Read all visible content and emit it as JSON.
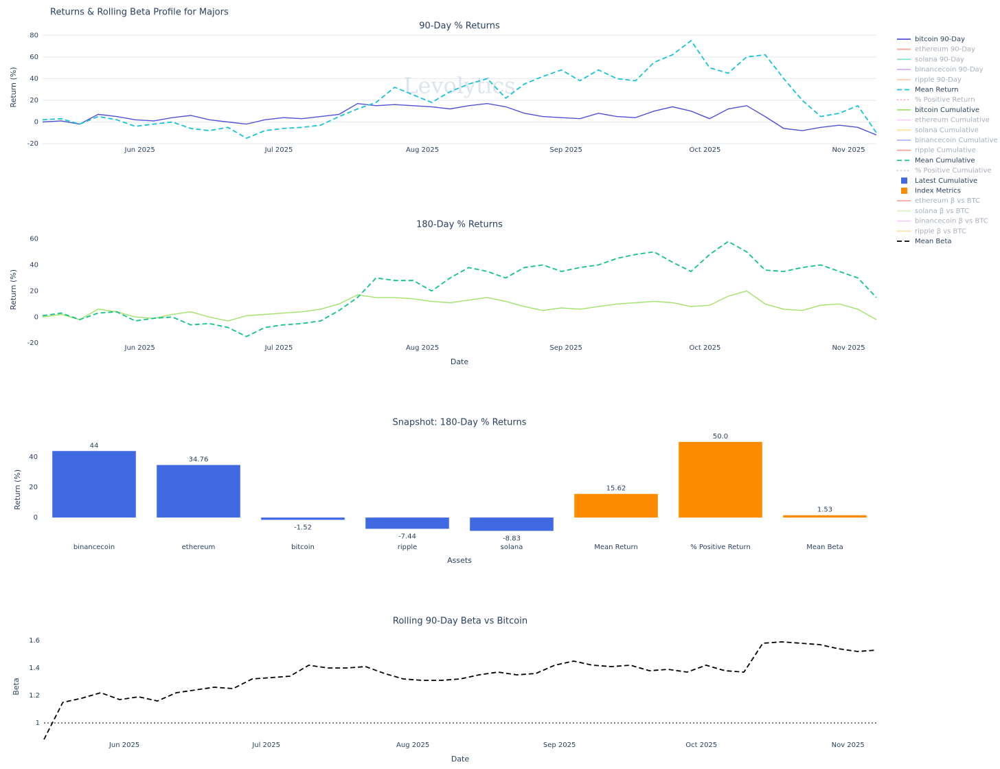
{
  "title": "Returns & Rolling Beta Profile for Majors",
  "legend": [
    {
      "name": "bitcoin 90-Day",
      "color": "#5050d9",
      "style": "solid",
      "visible": true
    },
    {
      "name": "ethereum 90-Day",
      "color": "#ef553b",
      "style": "solid",
      "visible": false
    },
    {
      "name": "solana 90-Day",
      "color": "#00cc96",
      "style": "solid",
      "visible": false
    },
    {
      "name": "binancecoin 90-Day",
      "color": "#ab63fa",
      "style": "solid",
      "visible": false
    },
    {
      "name": "ripple 90-Day",
      "color": "#ffa15a",
      "style": "solid",
      "visible": false
    },
    {
      "name": "Mean Return",
      "color": "#17c3d6",
      "style": "dash",
      "visible": true
    },
    {
      "name": "% Positive Return",
      "color": "#ff6692",
      "style": "dot",
      "visible": false
    },
    {
      "name": "bitcoin Cumulative",
      "color": "#a0e36a",
      "style": "solid",
      "visible": true
    },
    {
      "name": "ethereum Cumulative",
      "color": "#ff97ff",
      "style": "solid",
      "visible": false
    },
    {
      "name": "solana Cumulative",
      "color": "#fecb52",
      "style": "solid",
      "visible": false
    },
    {
      "name": "binancecoin Cumulative",
      "color": "#636efa",
      "style": "solid",
      "visible": false
    },
    {
      "name": "ripple Cumulative",
      "color": "#ef553b",
      "style": "solid",
      "visible": false
    },
    {
      "name": "Mean Cumulative",
      "color": "#10c38a",
      "style": "dash",
      "visible": true
    },
    {
      "name": "% Positive Cumulative",
      "color": "#8c8cd8",
      "style": "dot",
      "visible": false
    },
    {
      "name": "Latest Cumulative",
      "color": "#4169e1",
      "style": "square",
      "visible": true
    },
    {
      "name": "Index Metrics",
      "color": "#ff8c00",
      "style": "square",
      "visible": true
    },
    {
      "name": "ethereum β vs BTC",
      "color": "#ef553b",
      "style": "solid",
      "visible": false
    },
    {
      "name": "solana β vs BTC",
      "color": "#b6e880",
      "style": "solid",
      "visible": false
    },
    {
      "name": "binancecoin β vs BTC",
      "color": "#ff97ff",
      "style": "solid",
      "visible": false
    },
    {
      "name": "ripple β vs BTC",
      "color": "#fecb52",
      "style": "solid",
      "visible": false
    },
    {
      "name": "Mean Beta",
      "color": "#000000",
      "style": "dash",
      "visible": true
    }
  ],
  "chart_data": [
    {
      "type": "line",
      "title": "90-Day % Returns",
      "y_label": "Return (%)",
      "watermark": "Levolytics",
      "x": [
        131,
        135,
        139,
        143,
        147,
        151,
        155,
        159,
        163,
        167,
        171,
        175,
        179,
        183,
        187,
        191,
        195,
        199,
        203,
        207,
        211,
        215,
        219,
        223,
        227,
        231,
        235,
        239,
        243,
        247,
        251,
        255,
        259,
        263,
        267,
        271,
        275,
        279,
        283,
        287,
        291,
        295,
        299,
        303,
        307,
        311
      ],
      "xlim": [
        131,
        311
      ],
      "xticks": [
        {
          "value": 152,
          "label": "Jun 2025"
        },
        {
          "value": 182,
          "label": "Jul 2025"
        },
        {
          "value": 213,
          "label": "Aug 2025"
        },
        {
          "value": 244,
          "label": "Sep 2025"
        },
        {
          "value": 274,
          "label": "Oct 2025"
        },
        {
          "value": 305,
          "label": "Nov 2025"
        }
      ],
      "ylim": [
        -20,
        84
      ],
      "yticks": [
        -20,
        0,
        20,
        40,
        60,
        80
      ],
      "grid": true,
      "series": [
        {
          "color": "#5050d9",
          "dash": "solid",
          "values": [
            0,
            1,
            -2,
            7,
            5,
            2,
            1,
            4,
            6,
            2,
            0,
            -2,
            2,
            4,
            3,
            5,
            7,
            17,
            15,
            16,
            15,
            14,
            12,
            15,
            17,
            14,
            8,
            5,
            4,
            3,
            8,
            5,
            4,
            10,
            14,
            10,
            3,
            12,
            15,
            5,
            -6,
            -8,
            -5,
            -3,
            -5,
            -12
          ]
        },
        {
          "color": "#17c3d6",
          "dash": "dash",
          "values": [
            2,
            3,
            -2,
            5,
            2,
            -4,
            -2,
            0,
            -6,
            -8,
            -5,
            -15,
            -8,
            -6,
            -5,
            -3,
            5,
            12,
            18,
            32,
            25,
            18,
            28,
            35,
            40,
            22,
            35,
            42,
            48,
            38,
            48,
            40,
            38,
            55,
            62,
            75,
            50,
            45,
            60,
            62,
            40,
            20,
            5,
            8,
            15,
            -10
          ]
        }
      ]
    },
    {
      "type": "line",
      "title": "180-Day % Returns",
      "y_label": "Return (%)",
      "x_label": "Date",
      "x": [
        131,
        135,
        139,
        143,
        147,
        151,
        155,
        159,
        163,
        167,
        171,
        175,
        179,
        183,
        187,
        191,
        195,
        199,
        203,
        207,
        211,
        215,
        219,
        223,
        227,
        231,
        235,
        239,
        243,
        247,
        251,
        255,
        259,
        263,
        267,
        271,
        275,
        279,
        283,
        287,
        291,
        295,
        299,
        303,
        307,
        311
      ],
      "xlim": [
        131,
        311
      ],
      "xticks": [
        {
          "value": 152,
          "label": "Jun 2025"
        },
        {
          "value": 182,
          "label": "Jul 2025"
        },
        {
          "value": 213,
          "label": "Aug 2025"
        },
        {
          "value": 244,
          "label": "Sep 2025"
        },
        {
          "value": 274,
          "label": "Oct 2025"
        },
        {
          "value": 305,
          "label": "Nov 2025"
        }
      ],
      "ylim": [
        -22,
        64
      ],
      "yticks": [
        -20,
        0,
        20,
        40,
        60
      ],
      "grid": false,
      "series": [
        {
          "color": "#a0e36a",
          "dash": "solid",
          "values": [
            0,
            2,
            -2,
            6,
            4,
            0,
            -1,
            2,
            4,
            0,
            -3,
            1,
            2,
            3,
            4,
            6,
            10,
            17,
            15,
            15,
            14,
            12,
            11,
            13,
            15,
            12,
            8,
            5,
            7,
            6,
            8,
            10,
            11,
            12,
            11,
            8,
            9,
            16,
            20,
            10,
            6,
            5,
            9,
            10,
            6,
            -2
          ]
        },
        {
          "color": "#10c38a",
          "dash": "dash",
          "values": [
            1,
            3,
            -2,
            3,
            4,
            -3,
            -1,
            0,
            -6,
            -5,
            -8,
            -15,
            -8,
            -6,
            -5,
            -3,
            5,
            15,
            30,
            28,
            28,
            20,
            30,
            38,
            35,
            30,
            38,
            40,
            35,
            38,
            40,
            45,
            48,
            50,
            42,
            35,
            48,
            58,
            50,
            36,
            35,
            38,
            40,
            35,
            30,
            15
          ]
        }
      ]
    },
    {
      "type": "bar",
      "title": "Snapshot: 180-Day % Returns",
      "y_label": "Return (%)",
      "x_label": "Assets",
      "categories": [
        "binancecoin",
        "ethereum",
        "bitcoin",
        "ripple",
        "solana",
        "Mean Return",
        "% Positive Return",
        "Mean Beta"
      ],
      "values": [
        44,
        34.76,
        -1.52,
        -7.44,
        -8.83,
        15.62,
        50.0,
        1.53
      ],
      "value_labels": [
        "44",
        "34.76",
        "-1.52",
        "-7.44",
        "-8.83",
        "15.62",
        "50.0",
        "1.53"
      ],
      "colors": [
        "#4169e1",
        "#4169e1",
        "#4169e1",
        "#4169e1",
        "#4169e1",
        "#ff8c00",
        "#ff8c00",
        "#ff8c00"
      ],
      "ylim": [
        -14.5,
        51.4
      ],
      "yticks": [
        0,
        20,
        40
      ],
      "grid": false
    },
    {
      "type": "line",
      "title": "Rolling 90-Day Beta vs Bitcoin",
      "y_label": "Beta",
      "x_label": "Date",
      "x": [
        135,
        139,
        143,
        147,
        151,
        155,
        159,
        163,
        167,
        171,
        175,
        179,
        183,
        187,
        191,
        195,
        199,
        203,
        207,
        211,
        215,
        219,
        223,
        227,
        231,
        235,
        239,
        243,
        247,
        251,
        255,
        259,
        263,
        267,
        271,
        275,
        279,
        283,
        287,
        291,
        295,
        299,
        303,
        307,
        311
      ],
      "xlim": [
        135,
        311
      ],
      "xticks": [
        {
          "value": 152,
          "label": "Jun 2025"
        },
        {
          "value": 182,
          "label": "Jul 2025"
        },
        {
          "value": 213,
          "label": "Aug 2025"
        },
        {
          "value": 244,
          "label": "Sep 2025"
        },
        {
          "value": 274,
          "label": "Oct 2025"
        },
        {
          "value": 305,
          "label": "Nov 2025"
        }
      ],
      "ylim": [
        0.87,
        1.66
      ],
      "yticks": [
        1,
        1.2,
        1.4,
        1.6
      ],
      "grid": false,
      "reference": 1,
      "series": [
        {
          "color": "#000000",
          "dash": "dash",
          "values": [
            0.88,
            1.15,
            1.18,
            1.22,
            1.17,
            1.19,
            1.16,
            1.22,
            1.24,
            1.26,
            1.25,
            1.32,
            1.33,
            1.34,
            1.42,
            1.4,
            1.4,
            1.41,
            1.36,
            1.32,
            1.31,
            1.31,
            1.32,
            1.35,
            1.37,
            1.35,
            1.36,
            1.42,
            1.45,
            1.42,
            1.41,
            1.42,
            1.38,
            1.39,
            1.37,
            1.42,
            1.38,
            1.37,
            1.58,
            1.59,
            1.58,
            1.57,
            1.54,
            1.52,
            1.53
          ]
        }
      ]
    }
  ]
}
